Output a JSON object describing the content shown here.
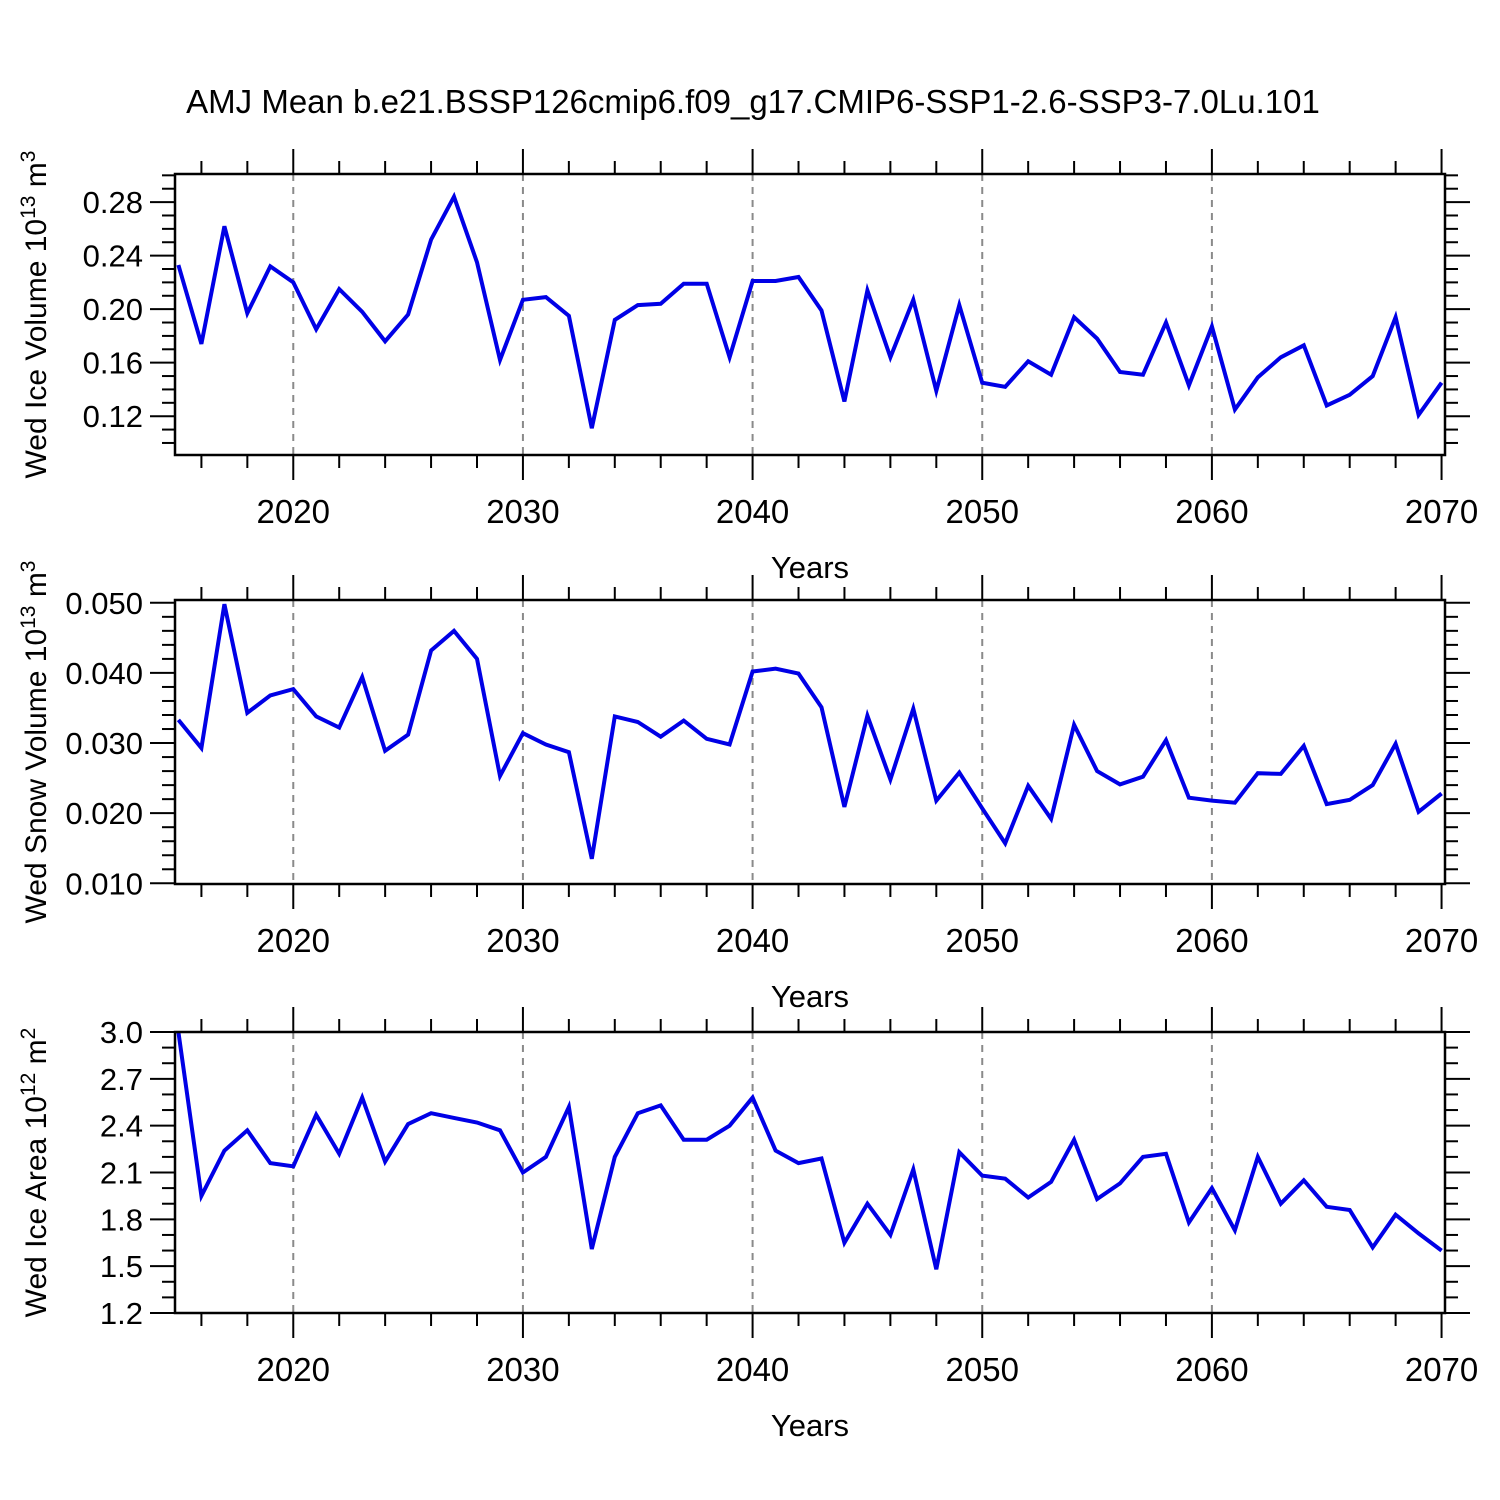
{
  "title": "AMJ Mean b.e21.BSSP126cmip6.f09_g17.CMIP6-SSP1-2.6-SSP3-7.0Lu.101",
  "colors": {
    "line": "#0000E6",
    "frame": "#000000",
    "gridline": "#8a8a8a",
    "text": "#000000"
  },
  "x_axis": {
    "label": "Years",
    "start_year": 2015,
    "end_year": 2070,
    "xlim": [
      2014.85,
      2070.15
    ],
    "major_tick_years": [
      2020,
      2030,
      2040,
      2050,
      2060,
      2070
    ],
    "major_tick_labels": [
      "2020",
      "2030",
      "2040",
      "2050",
      "2060",
      "2070"
    ],
    "minor_tick_step_years": 2,
    "dashed_gridline_years": [
      2020,
      2030,
      2040,
      2050,
      2060
    ]
  },
  "chart_data": [
    {
      "type": "line",
      "name": "ice-volume",
      "ylabel_base": "Wed Ice Volume 10",
      "ylabel_exponent": "13",
      "ylabel_unit": " m",
      "ylabel_unit_exponent": "3",
      "ytick_labels": [
        "0.28",
        "0.24",
        "0.20",
        "0.16",
        "0.12"
      ],
      "ytick_values": [
        0.28,
        0.24,
        0.2,
        0.16,
        0.12
      ],
      "y_minor_step": 0.01,
      "ylim": [
        0.091,
        0.301
      ],
      "xlabel": "Years",
      "values": [
        0.233,
        0.174,
        0.262,
        0.197,
        0.232,
        0.22,
        0.185,
        0.215,
        0.198,
        0.176,
        0.196,
        0.252,
        0.284,
        0.235,
        0.162,
        0.207,
        0.209,
        0.195,
        0.111,
        0.192,
        0.203,
        0.204,
        0.219,
        0.219,
        0.164,
        0.221,
        0.221,
        0.224,
        0.199,
        0.131,
        0.214,
        0.164,
        0.207,
        0.139,
        0.203,
        0.145,
        0.142,
        0.161,
        0.151,
        0.194,
        0.178,
        0.153,
        0.151,
        0.19,
        0.143,
        0.187,
        0.125,
        0.149,
        0.164,
        0.173,
        0.128,
        0.136,
        0.15,
        0.194,
        0.121,
        0.145
      ]
    },
    {
      "type": "line",
      "name": "snow-volume",
      "ylabel_base": "Wed Snow Volume 10",
      "ylabel_exponent": "13",
      "ylabel_unit": " m",
      "ylabel_unit_exponent": "3",
      "ytick_labels": [
        "0.050",
        "0.040",
        "0.030",
        "0.020",
        "0.010"
      ],
      "ytick_values": [
        0.05,
        0.04,
        0.03,
        0.02,
        0.01
      ],
      "y_minor_step": 0.002,
      "ylim": [
        0.0099,
        0.0504
      ],
      "xlabel": "Years",
      "values": [
        0.0333,
        0.0293,
        0.0498,
        0.0343,
        0.0368,
        0.0377,
        0.0338,
        0.0322,
        0.0394,
        0.0289,
        0.0312,
        0.0432,
        0.046,
        0.042,
        0.0253,
        0.0314,
        0.0298,
        0.0287,
        0.0135,
        0.0338,
        0.033,
        0.0309,
        0.0332,
        0.0306,
        0.0298,
        0.0402,
        0.0406,
        0.0399,
        0.0351,
        0.0209,
        0.0339,
        0.0248,
        0.0349,
        0.0218,
        0.0258,
        0.0207,
        0.0157,
        0.0239,
        0.0192,
        0.0326,
        0.026,
        0.0241,
        0.0252,
        0.0304,
        0.0222,
        0.0218,
        0.0215,
        0.0257,
        0.0256,
        0.0296,
        0.0213,
        0.0219,
        0.024,
        0.0299,
        0.0202,
        0.0228
      ]
    },
    {
      "type": "line",
      "name": "ice-area",
      "ylabel_base": "Wed Ice Area 10",
      "ylabel_exponent": "12",
      "ylabel_unit": " m",
      "ylabel_unit_exponent": "2",
      "ytick_labels": [
        "3.0",
        "2.7",
        "2.4",
        "2.1",
        "1.8",
        "1.5",
        "1.2"
      ],
      "ytick_values": [
        3.0,
        2.7,
        2.4,
        2.1,
        1.8,
        1.5,
        1.2
      ],
      "y_minor_step": 0.1,
      "ylim": [
        1.2,
        3.0
      ],
      "xlabel": "Years",
      "values": [
        3.0,
        1.95,
        2.24,
        2.37,
        2.16,
        2.14,
        2.47,
        2.22,
        2.58,
        2.17,
        2.41,
        2.48,
        2.45,
        2.42,
        2.37,
        2.1,
        2.2,
        2.52,
        1.61,
        2.2,
        2.48,
        2.53,
        2.31,
        2.31,
        2.4,
        2.58,
        2.24,
        2.16,
        2.19,
        1.65,
        1.9,
        1.7,
        2.12,
        1.48,
        2.23,
        2.08,
        2.06,
        1.94,
        2.04,
        2.31,
        1.93,
        2.03,
        2.2,
        2.22,
        1.78,
        2.0,
        1.73,
        2.2,
        1.9,
        2.05,
        1.88,
        1.86,
        1.62,
        1.83,
        1.71,
        1.6
      ]
    }
  ]
}
